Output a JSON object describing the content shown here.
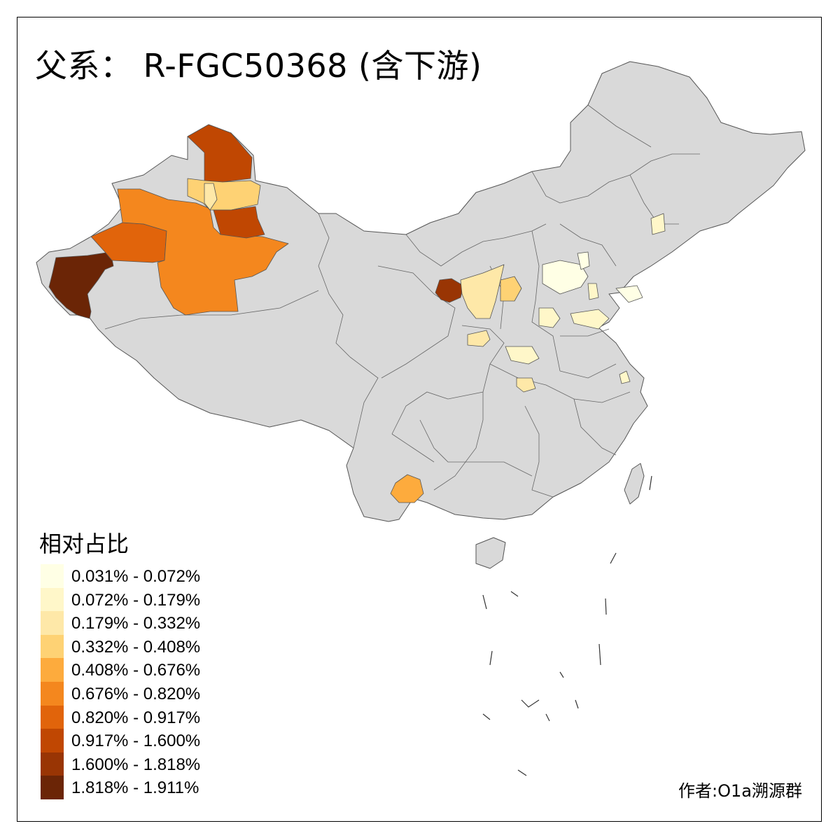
{
  "title": "父系： R-FGC50368 (含下游)",
  "legend": {
    "title": "相对占比",
    "items": [
      {
        "label": "0.031% - 0.072%",
        "color": "#ffffe5"
      },
      {
        "label": "0.072% - 0.179%",
        "color": "#fff7c9"
      },
      {
        "label": "0.179% - 0.332%",
        "color": "#fee8a8"
      },
      {
        "label": "0.332% - 0.408%",
        "color": "#fed274"
      },
      {
        "label": "0.408% - 0.676%",
        "color": "#fdab3d"
      },
      {
        "label": "0.676% - 0.820%",
        "color": "#f4871e"
      },
      {
        "label": "0.820% - 0.917%",
        "color": "#e1640b"
      },
      {
        "label": "0.917% - 1.600%",
        "color": "#c04702"
      },
      {
        "label": "1.600% - 1.818%",
        "color": "#993504"
      },
      {
        "label": "1.818% - 1.911%",
        "color": "#6b2506"
      }
    ]
  },
  "author": "作者:O1a溯源群",
  "colors": {
    "no_data": "#d9d9d9",
    "border": "#555555",
    "frame": "#000000"
  }
}
